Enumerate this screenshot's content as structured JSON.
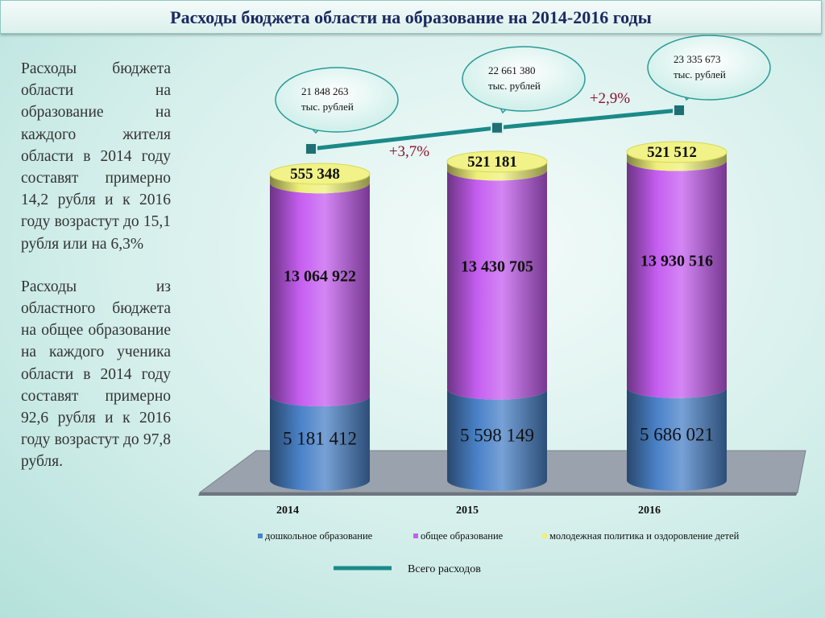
{
  "title": "Расходы бюджета области на образование на 2014-2016 годы",
  "left_paragraphs": [
    "Расходы бюджета области на образование на каждого жителя области в 2014 году составят примерно 14,2 рубля и к 2016 году возрастут до 15,1 рубля или на 6,3%",
    "Расходы из областного бюджета на общее образование на каждого ученика области в 2014 году составят примерно 92,6 рубля и к 2016 году возрастут до 97,8 рубля."
  ],
  "chart_data": {
    "type": "bar",
    "stacked": true,
    "categories": [
      "2014",
      "2015",
      "2016"
    ],
    "series": [
      {
        "name": "дошкольное образование",
        "values": [
          5181412,
          5598149,
          5686021
        ],
        "labels": [
          "5 181 412",
          "5 598 149",
          "5 686 021"
        ],
        "color": "#4a82c8"
      },
      {
        "name": "общее образование",
        "values": [
          13064922,
          13430705,
          13930516
        ],
        "labels": [
          "13 064 922",
          "13 430 705",
          "13 930 516"
        ],
        "color": "#c55ef0"
      },
      {
        "name": "молодежная политика и оздоровление детей",
        "values": [
          555348,
          521181,
          521512
        ],
        "labels": [
          "555 348",
          "521 181",
          "521 512"
        ],
        "color": "#eff07a"
      }
    ],
    "line": {
      "name": "Всего расходов",
      "values": [
        21848263,
        22661380,
        23335673
      ],
      "callouts": [
        [
          "21 848 263",
          "тыс. рублей"
        ],
        [
          "22 661 380",
          "тыс. рублей"
        ],
        [
          "23 335 673",
          "тыс. рублей"
        ]
      ],
      "color": "#1a8a88"
    },
    "growth_labels": [
      "+3,7%",
      "+2,9%"
    ],
    "legend_position": "bottom",
    "colors": {
      "line": "#1a8a88",
      "growth": "#8a1030",
      "text": "#111111"
    }
  }
}
